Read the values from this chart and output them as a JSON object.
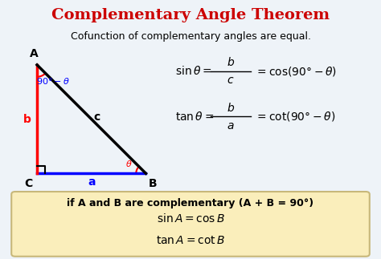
{
  "title": "Complementary Angle Theorem",
  "title_color": "#CC0000",
  "subtitle": "Cofunction of complementary angles are equal.",
  "bg_color": "#EEF3F8",
  "box_color": "#FAEEBB",
  "box_edge_color": "#C8B87A",
  "vertices": {
    "A": [
      0.0,
      1.0
    ],
    "B": [
      1.0,
      0.0
    ],
    "C": [
      0.0,
      0.0
    ]
  },
  "labels": {
    "A": [
      -0.03,
      1.03
    ],
    "B": [
      1.02,
      -0.04
    ],
    "C": [
      -0.07,
      -0.04
    ]
  },
  "side_labels": {
    "a": [
      0.5,
      -0.06
    ],
    "b": [
      -0.07,
      0.5
    ],
    "c": [
      0.46,
      0.55
    ]
  }
}
